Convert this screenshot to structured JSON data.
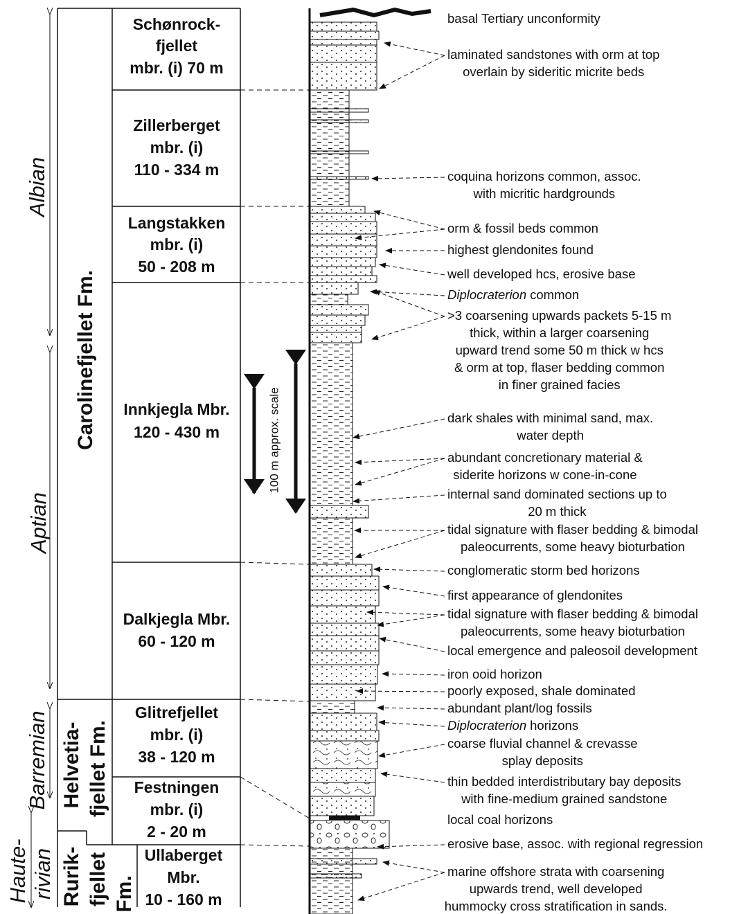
{
  "stages": [
    {
      "lines": [
        "Albian"
      ]
    },
    {
      "lines": [
        "Aptian"
      ]
    },
    {
      "lines": [
        "Barremian"
      ]
    },
    {
      "lines": [
        "Haute-",
        "rivian"
      ]
    }
  ],
  "formations": [
    {
      "lines": [
        "Carolinefjellet Fm."
      ]
    },
    {
      "lines": [
        "Helvetia-",
        "fjellet Fm."
      ]
    },
    {
      "lines": [
        "Rurik-",
        "fjellet",
        "Fm."
      ]
    }
  ],
  "members": [
    {
      "lines": [
        "Schønrock-",
        "fjellet",
        "mbr. (i) 70 m"
      ]
    },
    {
      "lines": [
        "Zillerberget",
        "mbr. (i)",
        "110 - 334 m"
      ]
    },
    {
      "lines": [
        "Langstakken",
        "mbr. (i)",
        "50 - 208 m"
      ]
    },
    {
      "lines": [
        "Innkjegla Mbr.",
        "120 - 430 m"
      ]
    },
    {
      "lines": [
        "Dalkjegla Mbr.",
        "60 - 120 m"
      ]
    },
    {
      "lines": [
        "Glitrefjellet",
        "mbr. (i)",
        "38 - 120 m"
      ]
    },
    {
      "lines": [
        "Festningen",
        "mbr. (i)",
        "2 - 20 m"
      ]
    },
    {
      "lines": [
        "Ullaberget",
        "Mbr.",
        "10 - 160 m"
      ]
    }
  ],
  "scale_label": "100 m approx. scale",
  "annotations": [
    {
      "lines": [
        "basal Tertiary unconformity"
      ]
    },
    {
      "lines": [
        "laminated sandstones with orm at top",
        "overlain by sideritic micrite beds"
      ]
    },
    {
      "lines": [
        "coquina horizons common, assoc.",
        "with micritic hardgrounds"
      ]
    },
    {
      "lines": [
        "orm & fossil beds common"
      ]
    },
    {
      "lines": [
        "highest glendonites found"
      ]
    },
    {
      "lines": [
        "well developed hcs, erosive base"
      ]
    },
    {
      "italic": "Diplocraterion",
      "rest": "common"
    },
    {
      "lines": [
        ">3 coarsening upwards packets 5-15 m",
        "thick, within a larger coarsening",
        "upward trend some 50 m thick w hcs",
        "& orm at top, flaser bedding common",
        "in finer grained facies"
      ]
    },
    {
      "lines": [
        "dark shales with minimal sand, max.",
        "water depth"
      ]
    },
    {
      "lines": [
        "abundant concretionary material &",
        "siderite horizons w cone-in-cone"
      ]
    },
    {
      "lines": [
        "internal sand dominated sections up to",
        "20 m thick"
      ]
    },
    {
      "lines": [
        "tidal signature with flaser bedding & bimodal",
        "paleocurrents, some heavy bioturbation"
      ]
    },
    {
      "lines": [
        "conglomeratic storm bed horizons"
      ]
    },
    {
      "lines": [
        "first appearance of glendonites"
      ]
    },
    {
      "lines": [
        "tidal signature with flaser bedding & bimodal",
        "paleocurrents, some heavy bioturbation"
      ]
    },
    {
      "lines": [
        "local emergence and paleosoil development"
      ]
    },
    {
      "lines": [
        "iron ooid horizon"
      ]
    },
    {
      "lines": [
        "poorly exposed, shale dominated"
      ]
    },
    {
      "lines": [
        "abundant plant/log fossils"
      ]
    },
    {
      "italic": "Diplocraterion",
      "rest": "horizons"
    },
    {
      "lines": [
        "coarse fluvial channel & crevasse",
        "splay deposits"
      ]
    },
    {
      "lines": [
        "thin bedded interdistributary bay deposits",
        "with fine-medium grained sandstone"
      ]
    },
    {
      "lines": [
        "local coal horizons"
      ]
    },
    {
      "lines": [
        "erosive base, assoc. with regional regression"
      ]
    },
    {
      "lines": [
        "marine offshore strata with coarsening",
        "upwards trend, well developed",
        "hummocky cross stratification in sands."
      ]
    }
  ]
}
